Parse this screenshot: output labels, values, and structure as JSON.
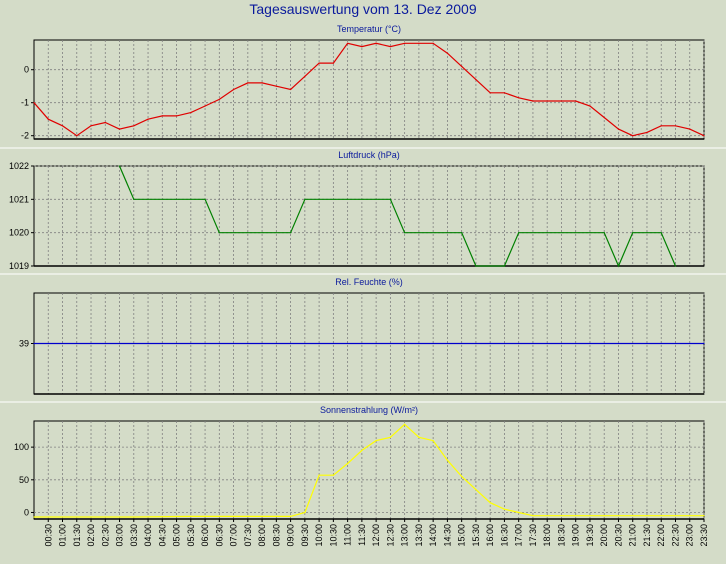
{
  "page_title": "Tagesauswertung vom 13. Dez 2009",
  "colors": {
    "background": "#d4dcc8",
    "title": "#0a1a9c",
    "plot_bg": "#d4dcc8",
    "grid": "#808080",
    "temperature": "#e00000",
    "pressure": "#008000",
    "humidity": "#0000cc",
    "radiation": "#ffff00"
  },
  "x_tick_labels": [
    "00:30",
    "01:00",
    "01:30",
    "02:00",
    "02:30",
    "03:00",
    "03:30",
    "04:00",
    "04:30",
    "05:00",
    "05:30",
    "06:00",
    "06:30",
    "07:00",
    "07:30",
    "08:00",
    "08:30",
    "09:00",
    "09:30",
    "10:00",
    "10:30",
    "11:00",
    "11:30",
    "12:00",
    "12:30",
    "13:00",
    "13:30",
    "14:00",
    "14:30",
    "15:00",
    "15:30",
    "16:00",
    "16:30",
    "17:00",
    "17:30",
    "18:00",
    "18:30",
    "19:00",
    "19:30",
    "20:00",
    "20:30",
    "21:00",
    "21:30",
    "22:00",
    "22:30",
    "23:00",
    "23:30"
  ],
  "chart_data": [
    {
      "type": "line",
      "title": "Temperatur (°C)",
      "ylim": [
        -2.1,
        0.9
      ],
      "yticks": [
        0,
        -1,
        -2
      ],
      "grid": true,
      "series": [
        {
          "color": "#e00000",
          "x": [
            "00:00",
            "00:30",
            "01:00",
            "01:30",
            "02:00",
            "02:30",
            "03:00",
            "03:30",
            "04:00",
            "04:30",
            "05:00",
            "05:30",
            "06:00",
            "06:30",
            "07:00",
            "07:30",
            "08:00",
            "08:30",
            "09:00",
            "09:30",
            "10:00",
            "10:30",
            "11:00",
            "11:30",
            "12:00",
            "12:30",
            "13:00",
            "13:30",
            "14:00",
            "14:30",
            "15:00",
            "15:30",
            "16:00",
            "16:30",
            "17:00",
            "17:30",
            "18:00",
            "18:30",
            "19:00",
            "19:30",
            "20:00",
            "20:30",
            "21:00",
            "21:30",
            "22:00",
            "22:30",
            "23:00",
            "23:30"
          ],
          "values": [
            -1.0,
            -1.5,
            -1.7,
            -2.0,
            -1.7,
            -1.6,
            -1.8,
            -1.7,
            -1.5,
            -1.4,
            -1.4,
            -1.3,
            -1.1,
            -0.9,
            -0.6,
            -0.4,
            -0.4,
            -0.5,
            -0.6,
            -0.2,
            0.2,
            0.2,
            0.8,
            0.7,
            0.8,
            0.7,
            0.8,
            0.8,
            0.8,
            0.5,
            0.1,
            -0.3,
            -0.7,
            -0.7,
            -0.85,
            -0.95,
            -0.95,
            -0.95,
            -0.95,
            -1.1,
            -1.45,
            -1.8,
            -2.0,
            -1.9,
            -1.7,
            -1.7,
            -1.8,
            -2.0
          ]
        }
      ]
    },
    {
      "type": "line",
      "title": "Luftdruck (hPa)",
      "ylim": [
        1019,
        1022
      ],
      "yticks": [
        1022,
        1021,
        1020,
        1019
      ],
      "grid": true,
      "series": [
        {
          "color": "#008000",
          "x": [
            "03:00",
            "03:30",
            "06:00",
            "06:30",
            "09:00",
            "09:30",
            "12:30",
            "13:00",
            "15:00",
            "15:30",
            "16:30",
            "17:00",
            "20:00",
            "20:30",
            "21:00",
            "22:00",
            "22:30"
          ],
          "values": [
            1022,
            1021,
            1021,
            1020,
            1020,
            1021,
            1021,
            1020,
            1020,
            1019,
            1019,
            1020,
            1020,
            1019,
            1020,
            1020,
            1019
          ]
        }
      ]
    },
    {
      "type": "line",
      "title": "Rel. Feuchte (%)",
      "ylim": [
        38,
        40
      ],
      "yticks": [
        39
      ],
      "grid": true,
      "series": [
        {
          "color": "#0000cc",
          "x": [
            "00:00",
            "23:30"
          ],
          "values": [
            39,
            39
          ]
        }
      ]
    },
    {
      "type": "line",
      "title": "Sonnenstrahlung (W/m²)",
      "ylim": [
        -10,
        140
      ],
      "yticks": [
        100,
        50,
        0
      ],
      "grid": true,
      "series": [
        {
          "color": "#ffff00",
          "x": [
            "00:00",
            "03:30",
            "05:30",
            "09:00",
            "09:30",
            "10:00",
            "10:30",
            "11:00",
            "11:30",
            "12:00",
            "12:30",
            "13:00",
            "13:30",
            "14:00",
            "14:30",
            "15:00",
            "15:30",
            "16:00",
            "16:30",
            "17:00",
            "17:30",
            "20:00",
            "23:30"
          ],
          "values": [
            -7,
            -7,
            -6,
            -6,
            0,
            57,
            57,
            75,
            95,
            110,
            115,
            135,
            115,
            110,
            80,
            55,
            35,
            15,
            5,
            0,
            -5,
            -5,
            -5
          ]
        }
      ]
    }
  ]
}
